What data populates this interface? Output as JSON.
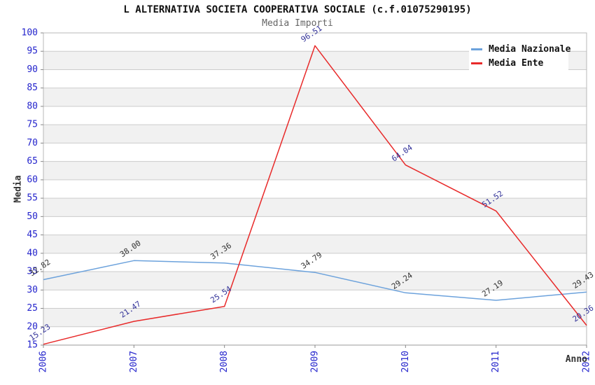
{
  "chart_data": {
    "type": "line",
    "title": "L ALTERNATIVA SOCIETA COOPERATIVA SOCIALE (c.f.01075290195)",
    "subtitle": "Media Importi",
    "xlabel": "Anno",
    "ylabel": "Media",
    "x_categories": [
      "2006",
      "2007",
      "2008",
      "2009",
      "2010",
      "2011",
      "2012"
    ],
    "ylim": [
      15,
      100
    ],
    "ytick_step": 5,
    "grid": true,
    "legend_position": "top-right",
    "series": [
      {
        "name": "Media Nazionale",
        "color": "#6CA2DC",
        "label_color": "#333333",
        "values": [
          32.82,
          38.0,
          37.36,
          34.79,
          29.24,
          27.19,
          29.43
        ]
      },
      {
        "name": "Media Ente",
        "color": "#E82A2A",
        "label_color": "#333399",
        "values": [
          15.23,
          21.47,
          25.54,
          96.51,
          64.04,
          51.52,
          20.36
        ]
      }
    ],
    "colors": {
      "tick_label": "#2424CC",
      "grid_line": "#CCCCCC",
      "band_fill": "#F1F1F1",
      "border": "#B8B8B8",
      "bottom_border": "#999999",
      "tick_mark": "#888888",
      "axis_label": "#333333",
      "background": "#FFFFFF"
    }
  }
}
